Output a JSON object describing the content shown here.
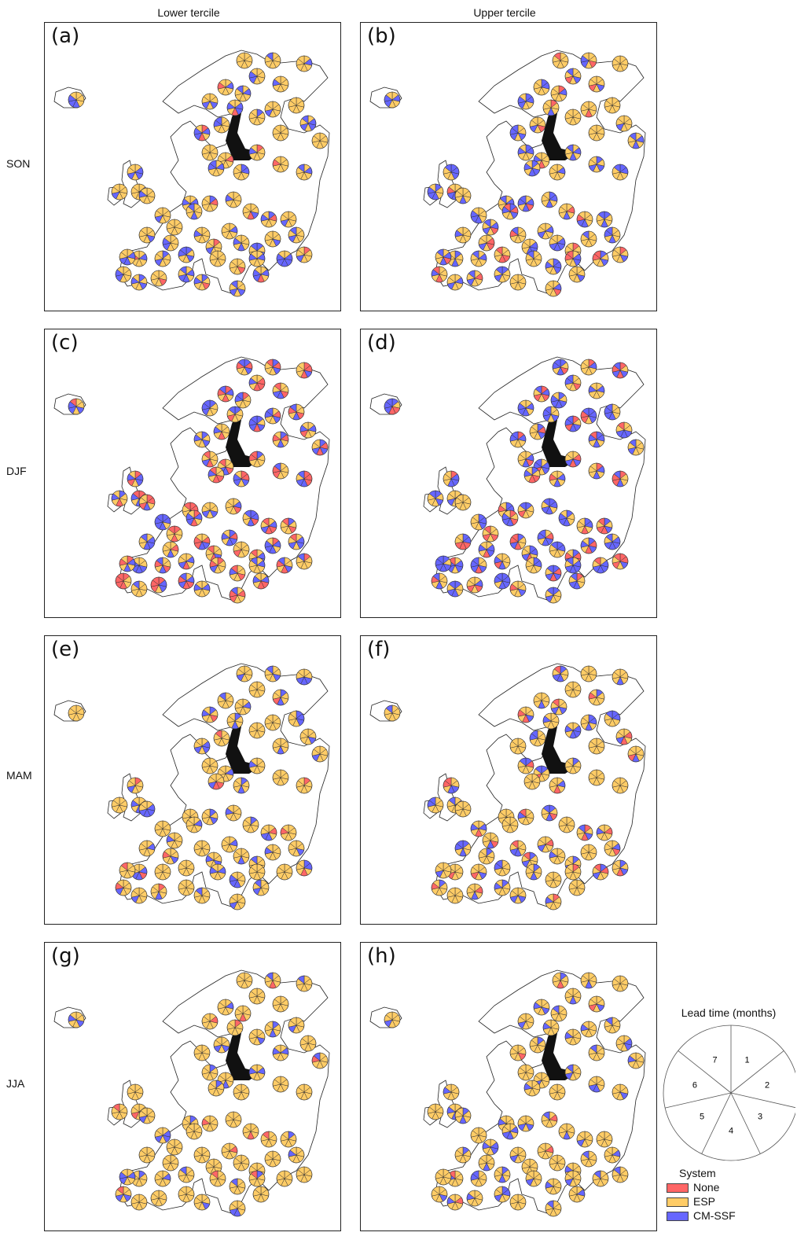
{
  "columns": [
    "Lower tercile",
    "Upper tercile"
  ],
  "rows": [
    "SON",
    "DJF",
    "MAM",
    "JJA"
  ],
  "panels": [
    "(a)",
    "(b)",
    "(c)",
    "(d)",
    "(e)",
    "(f)",
    "(g)",
    "(h)"
  ],
  "legend": {
    "lead_time_title": "Lead time (months)",
    "lead_times": [
      "1",
      "2",
      "3",
      "4",
      "5",
      "6",
      "7"
    ],
    "system_title": "System",
    "systems": [
      {
        "name": "None",
        "color": "#ff6666"
      },
      {
        "name": "ESP",
        "color": "#ffcc66"
      },
      {
        "name": "CM-SSF",
        "color": "#6666ff"
      }
    ]
  },
  "panel_dominance": [
    {
      "panel": "(a)",
      "ESP": 0.75,
      "CM-SSF": 0.22,
      "None": 0.03
    },
    {
      "panel": "(b)",
      "ESP": 0.65,
      "CM-SSF": 0.28,
      "None": 0.07
    },
    {
      "panel": "(c)",
      "ESP": 0.45,
      "CM-SSF": 0.33,
      "None": 0.22
    },
    {
      "panel": "(d)",
      "ESP": 0.42,
      "CM-SSF": 0.43,
      "None": 0.15
    },
    {
      "panel": "(e)",
      "ESP": 0.78,
      "CM-SSF": 0.17,
      "None": 0.05
    },
    {
      "panel": "(f)",
      "ESP": 0.7,
      "CM-SSF": 0.22,
      "None": 0.08
    },
    {
      "panel": "(g)",
      "ESP": 0.88,
      "CM-SSF": 0.09,
      "None": 0.03
    },
    {
      "panel": "(h)",
      "ESP": 0.8,
      "CM-SSF": 0.17,
      "None": 0.03
    }
  ]
}
